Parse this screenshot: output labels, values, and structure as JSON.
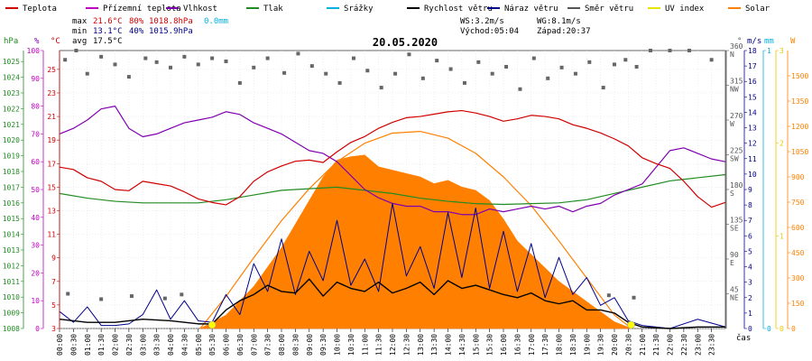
{
  "chart_data": {
    "type": "line",
    "title": "20.05.2020",
    "legend": [
      {
        "name": "Teplota",
        "color": "#d00000"
      },
      {
        "name": "Přízemní teplota",
        "color": "#c000c0"
      },
      {
        "name": "Vlhkost",
        "color": "#8000b0"
      },
      {
        "name": "Tlak",
        "color": "#228b22"
      },
      {
        "name": "Srážky",
        "color": "#00b0e0"
      },
      {
        "name": "Rychlost větru",
        "color": "#000000"
      },
      {
        "name": "Náraz větru",
        "color": "#00008b"
      },
      {
        "name": "Směr větru",
        "color": "#555555"
      },
      {
        "name": "UV index",
        "color": "#e6e600"
      },
      {
        "name": "Solar",
        "color": "#ff8000"
      }
    ],
    "stats": {
      "max_label": "max",
      "max_temp": "21.6°C",
      "max_hum": "80%",
      "max_press": "1018.8hPa",
      "max_rain": "0.0mm",
      "min_label": "min",
      "min_temp": "13.1°C",
      "min_hum": "40%",
      "min_press": "1015.9hPa",
      "avg_label": "avg",
      "avg_temp": "17.5°C",
      "ws": "WS:3.2m/s",
      "wg": "WG:8.1m/s",
      "sunrise": "Východ:05:04",
      "sunset": "Západ:20:37"
    },
    "axes": {
      "hpa_unit": "hPa",
      "hum_unit": "%",
      "temp_unit": "°C",
      "dir_unit": "°",
      "ms_unit": "m/s",
      "mm_unit": "mm",
      "w_unit": "W",
      "x_unit": "čas",
      "hpa_ticks": [
        1008,
        1009,
        1010,
        1011,
        1012,
        1013,
        1014,
        1015,
        1016,
        1017,
        1018,
        1019,
        1020,
        1021,
        1022,
        1023,
        1024,
        1025
      ],
      "hum_ticks": [
        0,
        10,
        20,
        30,
        40,
        50,
        60,
        70,
        80,
        90,
        100
      ],
      "temp_ticks": [
        3,
        5,
        7,
        9,
        11,
        13,
        15,
        17,
        19,
        21,
        23,
        25
      ],
      "dir_ticks": [
        {
          "v": "45",
          "c": "NE"
        },
        {
          "v": "90",
          "c": "E"
        },
        {
          "v": "135",
          "c": "SE"
        },
        {
          "v": "180",
          "c": "S"
        },
        {
          "v": "225",
          "c": "SW"
        },
        {
          "v": "270",
          "c": "W"
        },
        {
          "v": "315",
          "c": "NW"
        },
        {
          "v": "360",
          "c": "N"
        }
      ],
      "ms_ticks": [
        0,
        1,
        2,
        3,
        4,
        5,
        6,
        7,
        8,
        9,
        10,
        11,
        12,
        13,
        14,
        15,
        16,
        17,
        18
      ],
      "mm_ticks": [
        0,
        1
      ],
      "uv_ticks": [
        0,
        1,
        2,
        3
      ],
      "w_ticks": [
        0,
        150,
        300,
        450,
        600,
        750,
        900,
        1050,
        1200,
        1350,
        1500
      ],
      "hpa_range": [
        1008,
        1025.7
      ],
      "temp_range": [
        3,
        26.6
      ],
      "ms_range": [
        0,
        18
      ],
      "dir_range": [
        0,
        360
      ],
      "w_range": [
        0,
        1650
      ],
      "x_labels": [
        "00:00",
        "00:30",
        "01:00",
        "01:30",
        "02:00",
        "02:30",
        "03:00",
        "03:30",
        "04:00",
        "04:30",
        "05:00",
        "05:30",
        "06:00",
        "06:30",
        "07:00",
        "07:30",
        "08:00",
        "08:30",
        "09:00",
        "09:30",
        "10:00",
        "10:30",
        "11:00",
        "11:30",
        "12:00",
        "12:30",
        "13:00",
        "13:30",
        "14:00",
        "14:30",
        "15:00",
        "15:30",
        "16:00",
        "16:30",
        "17:00",
        "17:30",
        "18:00",
        "18:30",
        "19:00",
        "19:30",
        "20:00",
        "20:30",
        "21:00",
        "21:30",
        "22:00",
        "22:30",
        "23:00",
        "23:30"
      ]
    },
    "series_hours": {
      "temperature": [
        [
          0,
          16.7
        ],
        [
          0.5,
          16.5
        ],
        [
          1,
          15.8
        ],
        [
          1.5,
          15.5
        ],
        [
          2,
          14.8
        ],
        [
          2.5,
          14.7
        ],
        [
          3,
          15.5
        ],
        [
          3.5,
          15.3
        ],
        [
          4,
          15.1
        ],
        [
          4.5,
          14.6
        ],
        [
          5,
          14.0
        ],
        [
          5.5,
          13.7
        ],
        [
          6,
          13.5
        ],
        [
          6.5,
          14.2
        ],
        [
          7,
          15.5
        ],
        [
          7.5,
          16.3
        ],
        [
          8,
          16.8
        ],
        [
          8.5,
          17.2
        ],
        [
          9,
          17.3
        ],
        [
          9.5,
          17.1
        ],
        [
          10,
          18.0
        ],
        [
          10.5,
          18.8
        ],
        [
          11,
          19.3
        ],
        [
          11.5,
          20.0
        ],
        [
          12,
          20.5
        ],
        [
          12.5,
          20.9
        ],
        [
          13,
          21.0
        ],
        [
          13.5,
          21.2
        ],
        [
          14,
          21.4
        ],
        [
          14.5,
          21.5
        ],
        [
          15,
          21.3
        ],
        [
          15.5,
          21.0
        ],
        [
          16,
          20.6
        ],
        [
          16.5,
          20.8
        ],
        [
          17,
          21.1
        ],
        [
          17.5,
          21.0
        ],
        [
          18,
          20.8
        ],
        [
          18.5,
          20.3
        ],
        [
          19,
          20.0
        ],
        [
          19.5,
          19.6
        ],
        [
          20,
          19.1
        ],
        [
          20.5,
          18.5
        ],
        [
          21,
          17.5
        ],
        [
          21.5,
          17.0
        ],
        [
          22,
          16.6
        ],
        [
          22.5,
          15.5
        ],
        [
          23,
          14.2
        ],
        [
          23.5,
          13.3
        ],
        [
          24,
          13.7
        ]
      ],
      "humidity": [
        [
          0,
          70
        ],
        [
          0.5,
          72
        ],
        [
          1,
          75
        ],
        [
          1.5,
          79
        ],
        [
          2,
          80
        ],
        [
          2.5,
          72
        ],
        [
          3,
          69
        ],
        [
          3.5,
          70
        ],
        [
          4,
          72
        ],
        [
          4.5,
          74
        ],
        [
          5,
          75
        ],
        [
          5.5,
          76
        ],
        [
          6,
          78
        ],
        [
          6.5,
          77
        ],
        [
          7,
          74
        ],
        [
          7.5,
          72
        ],
        [
          8,
          70
        ],
        [
          8.5,
          67
        ],
        [
          9,
          64
        ],
        [
          9.5,
          63
        ],
        [
          10,
          60
        ],
        [
          10.5,
          55
        ],
        [
          11,
          50
        ],
        [
          11.5,
          47
        ],
        [
          12,
          45
        ],
        [
          12.5,
          44
        ],
        [
          13,
          44
        ],
        [
          13.5,
          42
        ],
        [
          14,
          42
        ],
        [
          14.5,
          41
        ],
        [
          15,
          41
        ],
        [
          15.5,
          43
        ],
        [
          16,
          42
        ],
        [
          16.5,
          43
        ],
        [
          17,
          44
        ],
        [
          17.5,
          43
        ],
        [
          18,
          44
        ],
        [
          18.5,
          42
        ],
        [
          19,
          44
        ],
        [
          19.5,
          45
        ],
        [
          20,
          48
        ],
        [
          20.5,
          50
        ],
        [
          21,
          52
        ],
        [
          21.5,
          58
        ],
        [
          22,
          64
        ],
        [
          22.5,
          65
        ],
        [
          23,
          63
        ],
        [
          23.5,
          61
        ],
        [
          24,
          60
        ]
      ],
      "pressure": [
        [
          0,
          1016.6
        ],
        [
          1,
          1016.3
        ],
        [
          2,
          1016.1
        ],
        [
          3,
          1016.0
        ],
        [
          4,
          1016.0
        ],
        [
          5,
          1016.0
        ],
        [
          6,
          1016.2
        ],
        [
          7,
          1016.5
        ],
        [
          8,
          1016.8
        ],
        [
          9,
          1016.9
        ],
        [
          10,
          1017.0
        ],
        [
          11,
          1016.8
        ],
        [
          12,
          1016.6
        ],
        [
          13,
          1016.3
        ],
        [
          14,
          1016.1
        ],
        [
          15,
          1015.95
        ],
        [
          16,
          1015.9
        ],
        [
          17,
          1015.95
        ],
        [
          18,
          1016.0
        ],
        [
          19,
          1016.2
        ],
        [
          20,
          1016.6
        ],
        [
          21,
          1017.0
        ],
        [
          22,
          1017.4
        ],
        [
          23,
          1017.6
        ],
        [
          24,
          1017.8
        ]
      ],
      "wind_speed": [
        [
          0,
          0.6
        ],
        [
          1,
          0.4
        ],
        [
          2,
          0.4
        ],
        [
          3,
          0.6
        ],
        [
          4,
          0.5
        ],
        [
          5,
          0.3
        ],
        [
          5.5,
          0.3
        ],
        [
          6,
          1.2
        ],
        [
          6.5,
          1.8
        ],
        [
          7,
          2.2
        ],
        [
          7.5,
          2.8
        ],
        [
          8,
          2.4
        ],
        [
          8.5,
          2.3
        ],
        [
          9,
          3.2
        ],
        [
          9.5,
          2.1
        ],
        [
          10,
          3.0
        ],
        [
          10.5,
          2.6
        ],
        [
          11,
          2.4
        ],
        [
          11.5,
          3.0
        ],
        [
          12,
          2.3
        ],
        [
          12.5,
          2.6
        ],
        [
          13,
          3.0
        ],
        [
          13.5,
          2.2
        ],
        [
          14,
          3.1
        ],
        [
          14.5,
          2.6
        ],
        [
          15,
          2.8
        ],
        [
          15.5,
          2.5
        ],
        [
          16,
          2.2
        ],
        [
          16.5,
          2.0
        ],
        [
          17,
          2.3
        ],
        [
          17.5,
          1.8
        ],
        [
          18,
          1.6
        ],
        [
          18.5,
          1.8
        ],
        [
          19,
          1.2
        ],
        [
          19.5,
          1.2
        ],
        [
          20,
          1.0
        ],
        [
          20.5,
          0.4
        ],
        [
          21,
          0.1
        ],
        [
          22,
          0.0
        ],
        [
          23,
          0.1
        ],
        [
          24,
          0.1
        ]
      ],
      "wind_gust": [
        [
          0,
          1.1
        ],
        [
          0.5,
          0.4
        ],
        [
          1,
          1.4
        ],
        [
          1.5,
          0.2
        ],
        [
          2,
          0.2
        ],
        [
          2.5,
          0.3
        ],
        [
          3,
          0.9
        ],
        [
          3.5,
          2.5
        ],
        [
          4,
          0.6
        ],
        [
          4.5,
          1.8
        ],
        [
          5,
          0.5
        ],
        [
          5.5,
          0.4
        ],
        [
          6,
          2.2
        ],
        [
          6.5,
          0.9
        ],
        [
          7,
          4.2
        ],
        [
          7.5,
          2.4
        ],
        [
          8,
          5.8
        ],
        [
          8.5,
          2.2
        ],
        [
          9,
          5.0
        ],
        [
          9.5,
          3.1
        ],
        [
          10,
          7.0
        ],
        [
          10.5,
          2.8
        ],
        [
          11,
          4.5
        ],
        [
          11.5,
          2.4
        ],
        [
          12,
          8.1
        ],
        [
          12.5,
          3.4
        ],
        [
          13,
          5.3
        ],
        [
          13.5,
          2.6
        ],
        [
          14,
          7.5
        ],
        [
          14.5,
          3.3
        ],
        [
          15,
          7.8
        ],
        [
          15.5,
          2.6
        ],
        [
          16,
          6.3
        ],
        [
          16.5,
          2.4
        ],
        [
          17,
          5.5
        ],
        [
          17.5,
          2.0
        ],
        [
          18,
          4.6
        ],
        [
          18.5,
          2.2
        ],
        [
          19,
          3.3
        ],
        [
          19.5,
          1.5
        ],
        [
          20,
          2.0
        ],
        [
          20.5,
          0.5
        ],
        [
          21,
          0.2
        ],
        [
          22,
          0.0
        ],
        [
          23,
          0.6
        ],
        [
          24,
          0.1
        ]
      ],
      "solar_theoretical": [
        [
          5.07,
          0
        ],
        [
          6,
          190
        ],
        [
          7,
          420
        ],
        [
          8,
          640
        ],
        [
          9,
          830
        ],
        [
          10,
          990
        ],
        [
          11,
          1100
        ],
        [
          12,
          1160
        ],
        [
          13,
          1170
        ],
        [
          14,
          1130
        ],
        [
          15,
          1040
        ],
        [
          16,
          900
        ],
        [
          17,
          730
        ],
        [
          18,
          520
        ],
        [
          19,
          300
        ],
        [
          20,
          80
        ],
        [
          20.62,
          0
        ]
      ],
      "solar_measured": [
        [
          5.07,
          0
        ],
        [
          6,
          80
        ],
        [
          7,
          250
        ],
        [
          8,
          480
        ],
        [
          9,
          760
        ],
        [
          9.5,
          900
        ],
        [
          10,
          1000
        ],
        [
          10.5,
          1020
        ],
        [
          11,
          1030
        ],
        [
          11.5,
          960
        ],
        [
          12,
          940
        ],
        [
          12.5,
          920
        ],
        [
          13,
          900
        ],
        [
          13.5,
          860
        ],
        [
          14,
          880
        ],
        [
          14.5,
          840
        ],
        [
          15,
          820
        ],
        [
          15.5,
          760
        ],
        [
          16,
          650
        ],
        [
          16.5,
          520
        ],
        [
          17,
          440
        ],
        [
          17.5,
          360
        ],
        [
          18,
          280
        ],
        [
          18.5,
          220
        ],
        [
          19,
          160
        ],
        [
          19.5,
          100
        ],
        [
          20,
          40
        ],
        [
          20.62,
          0
        ]
      ],
      "wind_direction": [
        [
          0.2,
          348
        ],
        [
          0.6,
          360
        ],
        [
          1.0,
          330
        ],
        [
          1.5,
          352
        ],
        [
          2.0,
          342
        ],
        [
          2.5,
          326
        ],
        [
          3.1,
          350
        ],
        [
          3.5,
          345
        ],
        [
          4.0,
          338
        ],
        [
          4.5,
          352
        ],
        [
          5.0,
          342
        ],
        [
          5.5,
          350
        ],
        [
          6.0,
          346
        ],
        [
          6.5,
          318
        ],
        [
          7.0,
          338
        ],
        [
          7.5,
          350
        ],
        [
          8.1,
          331
        ],
        [
          8.6,
          356
        ],
        [
          9.1,
          340
        ],
        [
          9.6,
          330
        ],
        [
          10.1,
          318
        ],
        [
          10.6,
          350
        ],
        [
          11.1,
          334
        ],
        [
          11.6,
          312
        ],
        [
          12.1,
          330
        ],
        [
          12.6,
          355
        ],
        [
          13.1,
          324
        ],
        [
          13.6,
          347
        ],
        [
          14.1,
          336
        ],
        [
          14.6,
          318
        ],
        [
          15.1,
          345
        ],
        [
          15.6,
          330
        ],
        [
          16.1,
          339
        ],
        [
          16.6,
          310
        ],
        [
          17.1,
          350
        ],
        [
          17.6,
          324
        ],
        [
          18.1,
          338
        ],
        [
          18.6,
          330
        ],
        [
          19.1,
          345
        ],
        [
          19.6,
          312
        ],
        [
          20.0,
          342
        ],
        [
          20.4,
          348
        ],
        [
          20.8,
          339
        ],
        [
          21.3,
          360
        ],
        [
          22.0,
          360
        ],
        [
          22.7,
          360
        ],
        [
          23.5,
          348
        ],
        [
          0.3,
          45
        ],
        [
          1.5,
          38
        ],
        [
          2.6,
          42
        ],
        [
          3.8,
          39
        ],
        [
          4.4,
          44
        ],
        [
          19.8,
          43
        ],
        [
          20.7,
          40
        ]
      ]
    },
    "uv_markers_hours": [
      5.5,
      20.6
    ]
  }
}
